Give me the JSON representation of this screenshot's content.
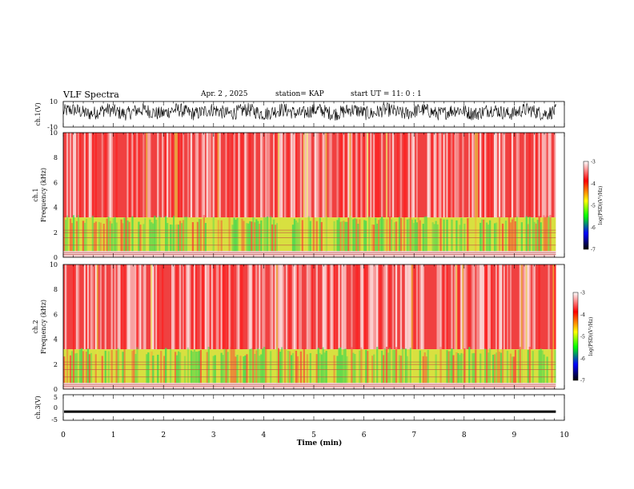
{
  "header": {
    "title": "VLF Spectra",
    "date": "Apr. 2 , 2025",
    "station": "station= KAP",
    "start": "start UT =  11: 0 : 1"
  },
  "chart_data": [
    {
      "type": "line",
      "panel": "ch1-waveform",
      "ylabel": "ch.1(V)",
      "ylim": [
        -10,
        10
      ],
      "yticks": [
        10,
        -10
      ],
      "xlim": [
        0,
        9.83
      ],
      "color": "#000000",
      "description_values": "dense noisy waveform between about -4 and 8 V"
    },
    {
      "type": "heatmap",
      "panel": "ch1-spectrogram",
      "ylabel": "ch.1 Frequency (kHz)",
      "ylim": [
        0,
        10
      ],
      "yticks": [
        0,
        2,
        4,
        6,
        8,
        10
      ],
      "xlim": [
        0,
        9.83
      ],
      "bands": [
        {
          "from": 0,
          "to": 0.5,
          "level": "white-grey lines"
        },
        {
          "from": 0.5,
          "to": 3.2,
          "level": "green-yellow, log PSD about -4.5 to -5"
        },
        {
          "from": 3.2,
          "to": 10,
          "level": "red-white, log PSD about -3.5 to -4"
        }
      ],
      "colorbar": {
        "label": "log(PSD)(V²/Hz)",
        "range": [
          -7,
          -3
        ],
        "ticks": [
          "-3",
          "-4",
          "-5",
          "-6",
          "-7"
        ],
        "colors": [
          "#ffffff",
          "#ff0000",
          "#ffff00",
          "#00ff00",
          "#0000ff",
          "#000000"
        ]
      }
    },
    {
      "type": "heatmap",
      "panel": "ch2-spectrogram",
      "ylabel": "ch.2 Frequency (kHz)",
      "ylim": [
        0,
        10
      ],
      "yticks": [
        0,
        2,
        4,
        6,
        8,
        10
      ],
      "xlim": [
        0,
        9.83
      ],
      "colorbar": {
        "label": "log(PSD)(V²/Hz)",
        "range": [
          -7,
          -3
        ],
        "ticks": [
          "-3",
          "-4",
          "-5",
          "-6",
          "-7"
        ],
        "colors": [
          "#ffffff",
          "#ff0000",
          "#ffff00",
          "#00ff00",
          "#0000ff",
          "#000000"
        ]
      }
    },
    {
      "type": "line",
      "panel": "ch3-waveform",
      "ylabel": "ch.3(V)",
      "ylim": [
        -5,
        5
      ],
      "yticks": [
        "5",
        "0",
        "-5"
      ],
      "xlim": [
        0,
        9.83
      ],
      "level": -1.5,
      "color": "#000000"
    }
  ],
  "xaxis": {
    "label": "Time (min)",
    "ticks": [
      "0",
      "1",
      "2",
      "3",
      "4",
      "5",
      "6",
      "7",
      "8",
      "9",
      "10"
    ],
    "range": [
      0,
      10
    ]
  }
}
